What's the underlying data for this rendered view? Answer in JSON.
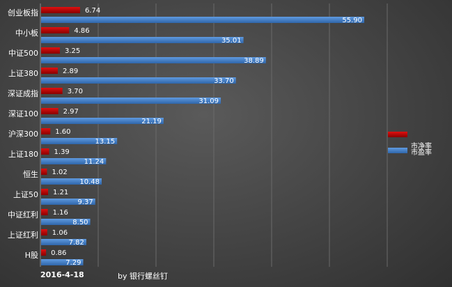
{
  "chart_data": {
    "type": "bar",
    "orientation": "horizontal",
    "categories": [
      "创业板指",
      "中小板",
      "中证500",
      "上证380",
      "深证成指",
      "深证100",
      "沪深300",
      "上证180",
      "恒生",
      "上证50",
      "中证红利",
      "上证红利",
      "H股"
    ],
    "series": [
      {
        "name": "市净率",
        "color": "#cc0000",
        "values": [
          6.74,
          4.86,
          3.25,
          2.89,
          3.7,
          2.97,
          1.6,
          1.39,
          1.02,
          1.21,
          1.16,
          1.06,
          0.86
        ]
      },
      {
        "name": "市盈率",
        "color": "#4a86d0",
        "values": [
          55.9,
          35.01,
          38.89,
          33.7,
          31.09,
          21.19,
          13.15,
          11.24,
          10.48,
          9.37,
          8.5,
          7.82,
          7.29
        ]
      }
    ],
    "value_labels": {
      "pb": [
        "6.74",
        "4.86",
        "3.25",
        "2.89",
        "3.70",
        "2.97",
        "1.60",
        "1.39",
        "1.02",
        "1.21",
        "1.16",
        "1.06",
        "0.86"
      ],
      "pe": [
        "55.90",
        "35.01",
        "38.89",
        "33.70",
        "31.09",
        "21.19",
        "13.15",
        "11.24",
        "10.48",
        "9.37",
        "8.50",
        "7.82",
        "7.29"
      ]
    },
    "xlim": [
      0,
      60
    ],
    "gridlines": "vertical",
    "legend_position": "right"
  },
  "footer": {
    "date": "2016-4-18",
    "credit": "by 银行螺丝钉"
  }
}
